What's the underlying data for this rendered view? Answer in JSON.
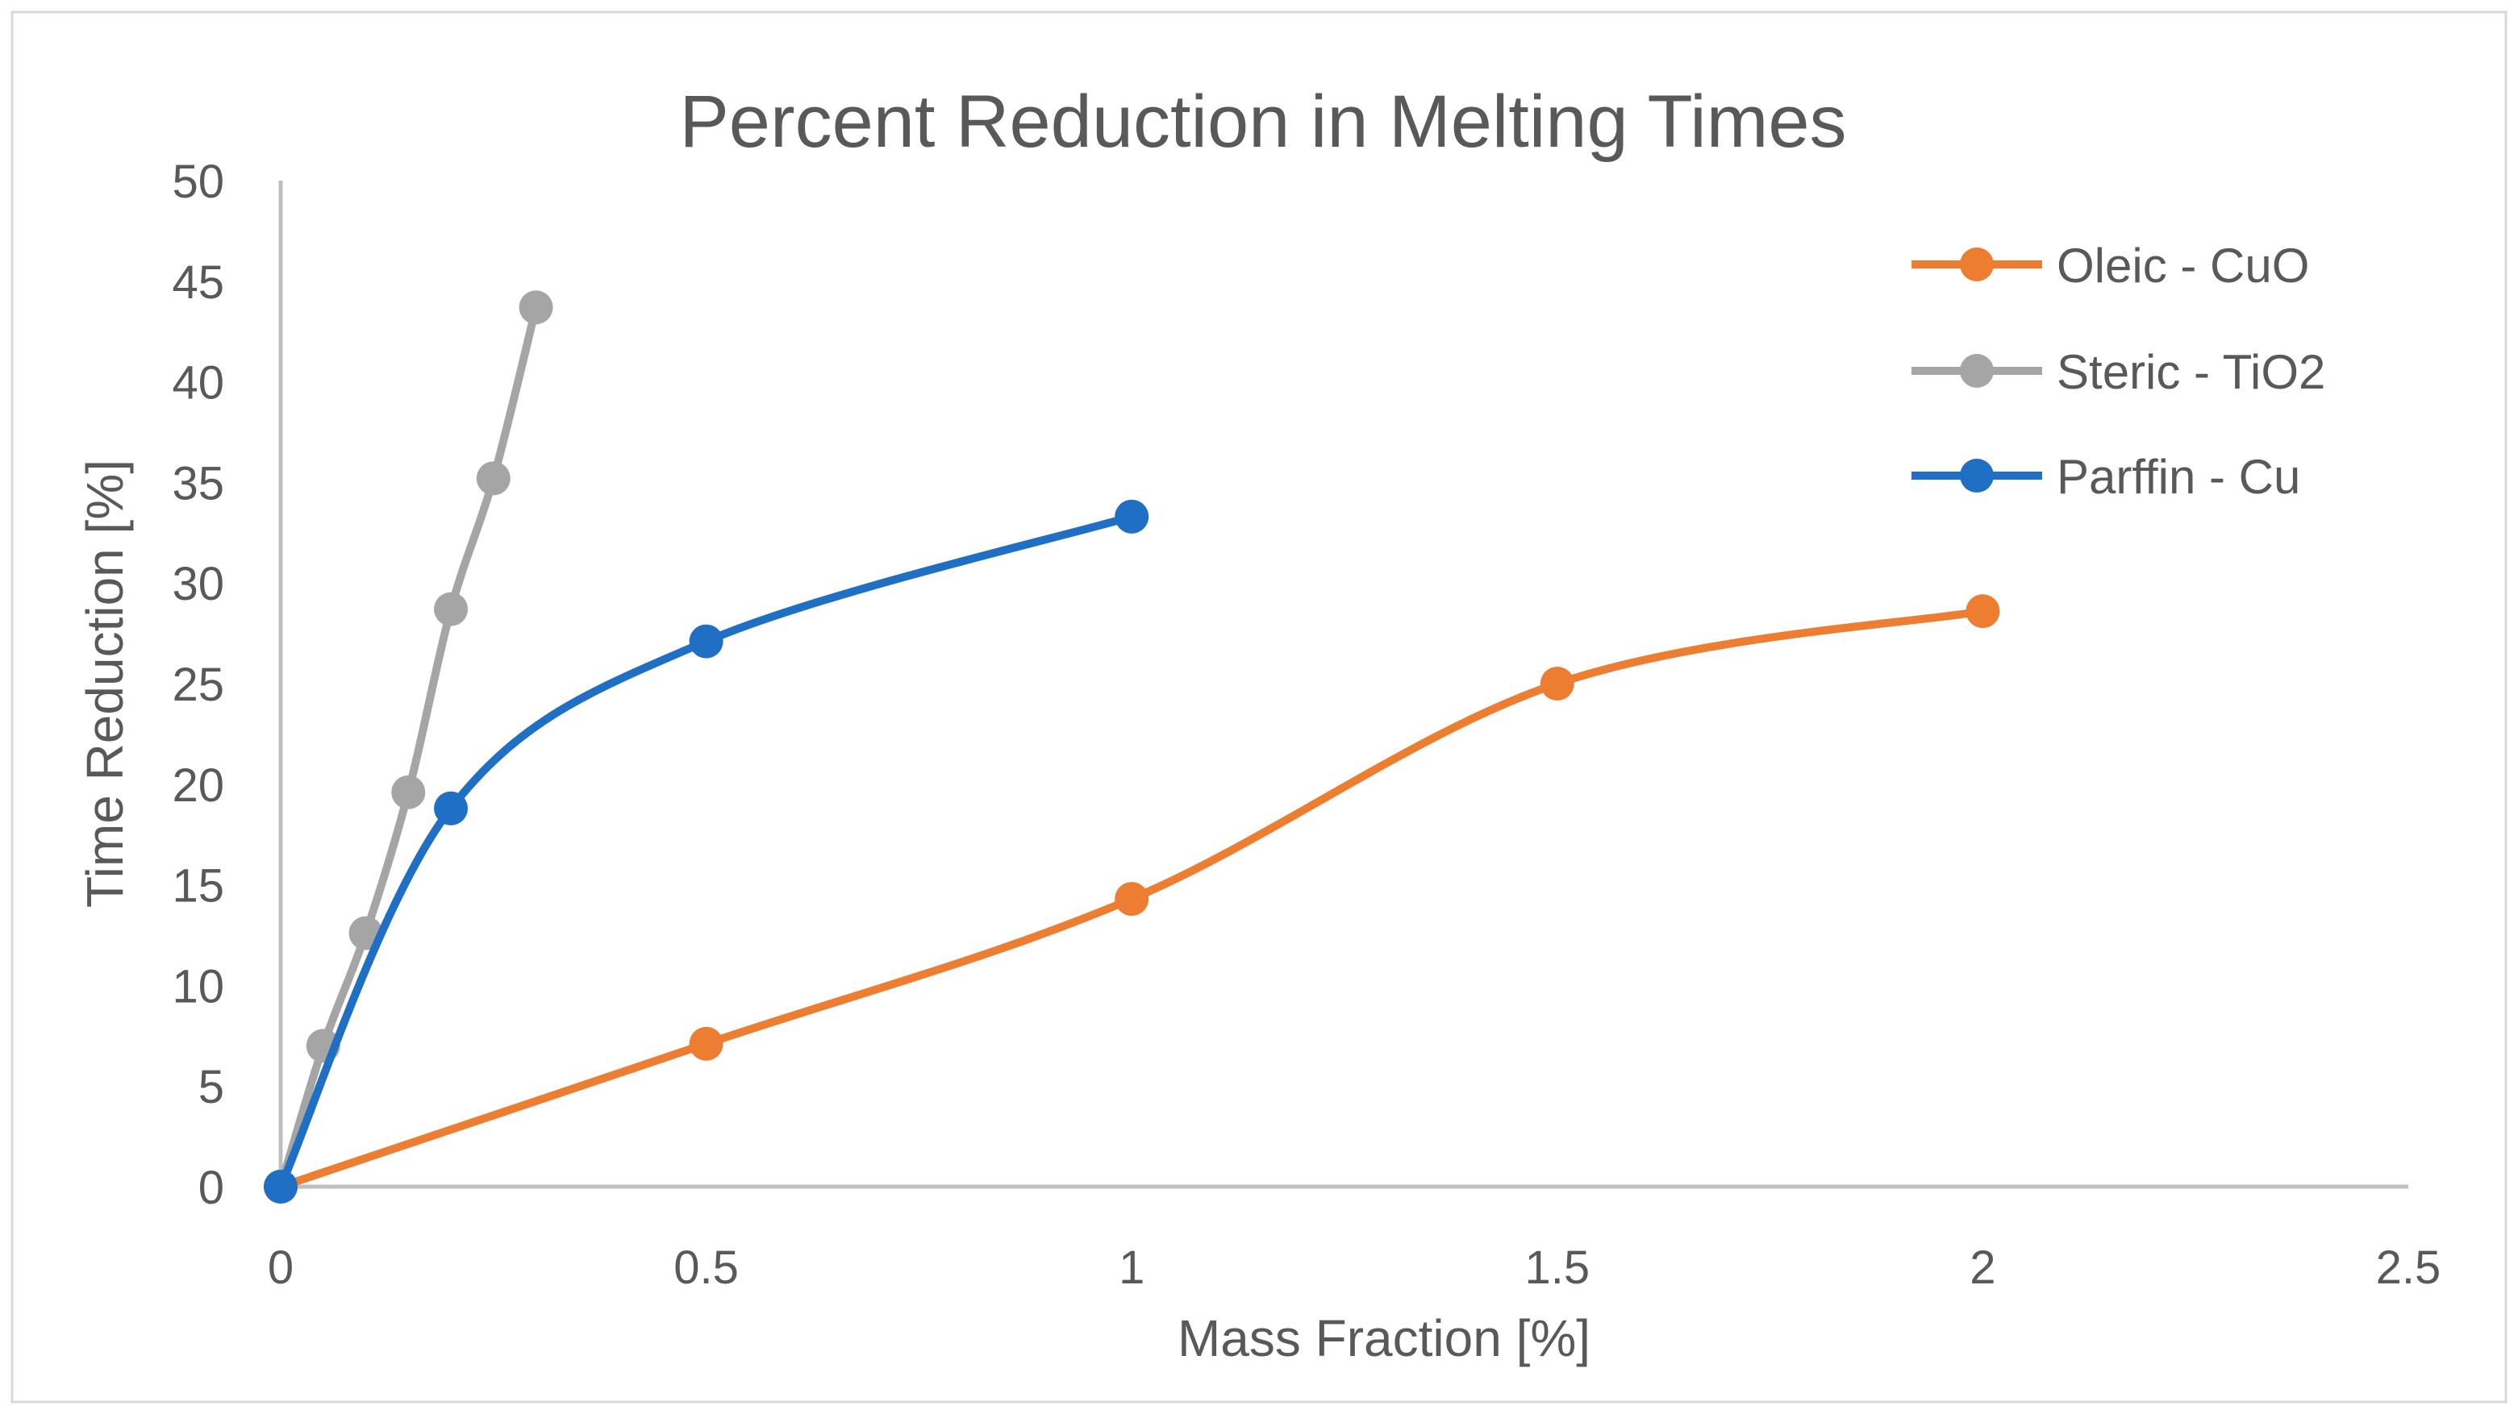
{
  "chart_data": {
    "type": "line",
    "title": "Percent Reduction in Melting Times",
    "xlabel": "Mass Fraction [%]",
    "ylabel": "Time Reduction [%]",
    "xlim": [
      0,
      2.5
    ],
    "ylim": [
      0,
      50
    ],
    "x_ticks": [
      "0",
      "0.5",
      "1",
      "1.5",
      "2",
      "2.5"
    ],
    "y_ticks": [
      "0",
      "5",
      "10",
      "15",
      "20",
      "25",
      "30",
      "35",
      "40",
      "45",
      "50"
    ],
    "grid": false,
    "smooth": true,
    "legend_position": "right",
    "series": [
      {
        "name": "Oleic - CuO",
        "color": "#ED7D31",
        "points": [
          [
            0,
            0
          ],
          [
            0.5,
            7.1
          ],
          [
            1,
            14.3
          ],
          [
            1.5,
            25
          ],
          [
            2,
            28.6
          ]
        ]
      },
      {
        "name": "Steric - TiO2",
        "color": "#A5A5A5",
        "points": [
          [
            0,
            0
          ],
          [
            0.05,
            7.0
          ],
          [
            0.1,
            12.6
          ],
          [
            0.15,
            19.6
          ],
          [
            0.2,
            28.7
          ],
          [
            0.25,
            35.2
          ],
          [
            0.3,
            43.7
          ]
        ]
      },
      {
        "name": "Parffin - Cu",
        "color": "#1F6FC5",
        "points": [
          [
            0,
            0
          ],
          [
            0.2,
            18.8
          ],
          [
            0.5,
            27.1
          ],
          [
            1,
            33.3
          ]
        ]
      }
    ]
  }
}
